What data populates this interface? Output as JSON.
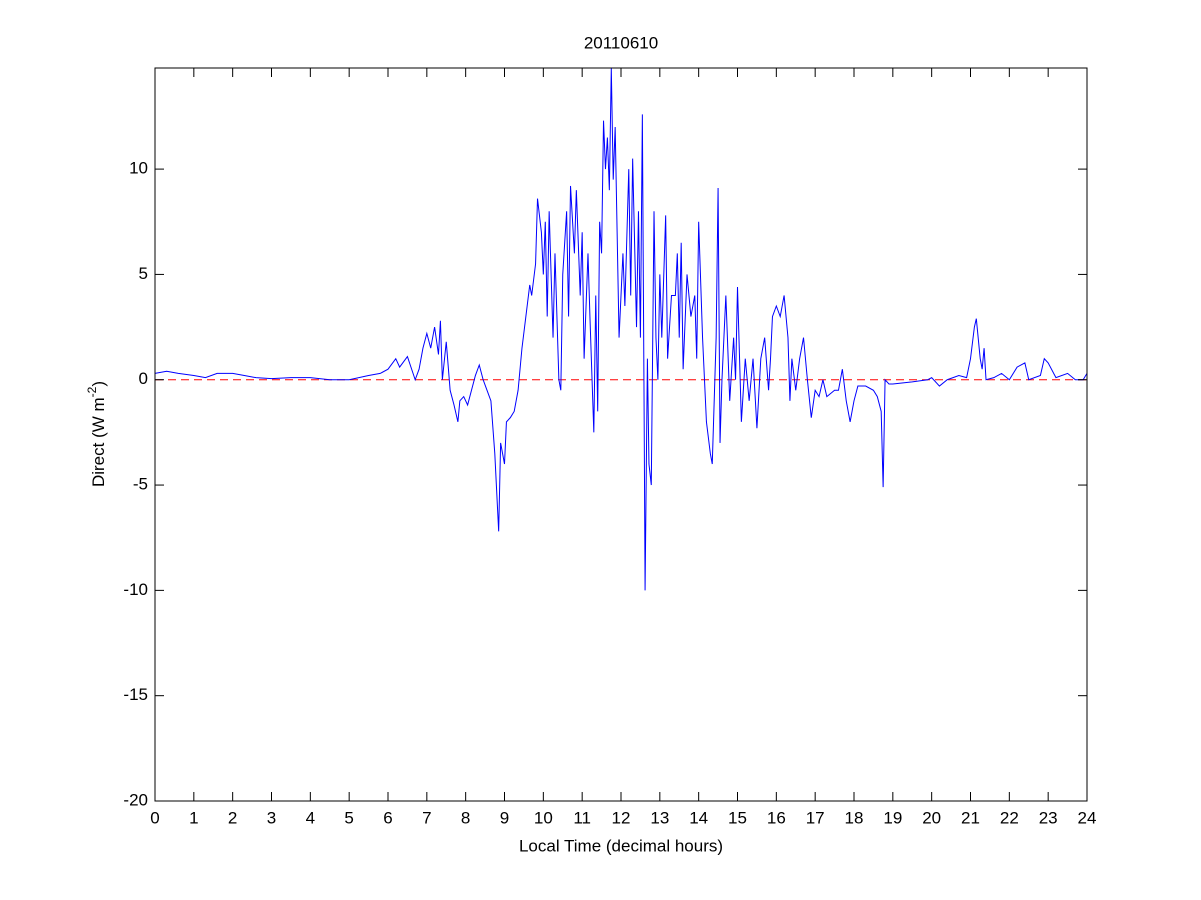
{
  "chart_data": {
    "type": "line",
    "title": "20110610",
    "x_label": "Local Time (decimal hours)",
    "y_label": {
      "text": "Direct (W m",
      "superscript": "-2",
      "suffix": ")"
    },
    "x": [
      0,
      0.3,
      0.6,
      1,
      1.3,
      1.6,
      2,
      2.3,
      2.6,
      3,
      3.5,
      4,
      4.5,
      5,
      5.5,
      5.8,
      6,
      6.2,
      6.3,
      6.5,
      6.7,
      6.8,
      6.9,
      7.0,
      7.1,
      7.2,
      7.3,
      7.35,
      7.4,
      7.5,
      7.6,
      7.7,
      7.8,
      7.85,
      7.95,
      8.05,
      8.15,
      8.25,
      8.35,
      8.45,
      8.55,
      8.65,
      8.75,
      8.85,
      8.9,
      9.0,
      9.05,
      9.15,
      9.25,
      9.35,
      9.45,
      9.55,
      9.65,
      9.7,
      9.8,
      9.85,
      9.95,
      10.0,
      10.05,
      10.1,
      10.15,
      10.25,
      10.3,
      10.4,
      10.45,
      10.5,
      10.6,
      10.65,
      10.7,
      10.8,
      10.85,
      10.95,
      11.0,
      11.05,
      11.15,
      11.2,
      11.3,
      11.35,
      11.4,
      11.45,
      11.5,
      11.55,
      11.6,
      11.65,
      11.7,
      11.75,
      11.8,
      11.85,
      11.9,
      11.95,
      12.05,
      12.1,
      12.2,
      12.25,
      12.3,
      12.4,
      12.45,
      12.5,
      12.55,
      12.6,
      12.62,
      12.68,
      12.72,
      12.78,
      12.85,
      12.9,
      12.95,
      13.0,
      13.05,
      13.15,
      13.2,
      13.3,
      13.4,
      13.45,
      13.5,
      13.55,
      13.6,
      13.7,
      13.8,
      13.9,
      13.95,
      14.0,
      14.1,
      14.15,
      14.2,
      14.3,
      14.35,
      14.4,
      14.45,
      14.5,
      14.55,
      14.6,
      14.7,
      14.8,
      14.9,
      14.95,
      15.0,
      15.1,
      15.2,
      15.3,
      15.4,
      15.5,
      15.6,
      15.7,
      15.8,
      15.85,
      15.9,
      16.0,
      16.1,
      16.2,
      16.3,
      16.35,
      16.4,
      16.5,
      16.6,
      16.7,
      16.8,
      16.9,
      17.0,
      17.1,
      17.2,
      17.3,
      17.5,
      17.6,
      17.7,
      17.8,
      17.9,
      18.0,
      18.1,
      18.3,
      18.5,
      18.6,
      18.7,
      18.75,
      18.8,
      18.9,
      19.0,
      19.5,
      19.9,
      20.0,
      20.2,
      20.4,
      20.7,
      20.9,
      21.0,
      21.1,
      21.15,
      21.25,
      21.3,
      21.35,
      21.4,
      21.6,
      21.8,
      22.0,
      22.2,
      22.4,
      22.5,
      22.8,
      22.9,
      23.0,
      23.2,
      23.5,
      23.7,
      23.9,
      24
    ],
    "series": [
      {
        "color": "#0000ff",
        "values": [
          0.3,
          0.4,
          0.3,
          0.2,
          0.1,
          0.3,
          0.3,
          0.2,
          0.1,
          0.05,
          0.1,
          0.1,
          0,
          0,
          0.2,
          0.3,
          0.5,
          1.0,
          0.6,
          1.1,
          0,
          0.5,
          1.5,
          2.2,
          1.5,
          2.5,
          1.2,
          2.8,
          0,
          1.8,
          -0.5,
          -1.2,
          -2,
          -1,
          -0.8,
          -1.2,
          -0.5,
          0.2,
          0.7,
          0,
          -0.5,
          -1,
          -3.5,
          -7.2,
          -3,
          -4,
          -2,
          -1.8,
          -1.5,
          -0.5,
          1.5,
          3,
          4.5,
          4,
          5.5,
          8.6,
          7,
          5,
          7.5,
          3,
          8,
          2,
          6,
          0,
          -0.5,
          5,
          8,
          3,
          9.2,
          6,
          9,
          4,
          7,
          1,
          6,
          3,
          -2.5,
          4,
          -1.5,
          7.5,
          6,
          12.3,
          10,
          11.5,
          9,
          14.8,
          9.5,
          12,
          7,
          2,
          6,
          3.5,
          10,
          4,
          10.5,
          2.5,
          8,
          2,
          12.6,
          -3,
          -10,
          1,
          -4,
          -5,
          8,
          2,
          0,
          5,
          2,
          7.8,
          1,
          4,
          4,
          6,
          2,
          6.5,
          0.5,
          5,
          3,
          4,
          1,
          7.5,
          2,
          0,
          -2,
          -3.5,
          -4,
          -1,
          2,
          9.1,
          -3,
          0,
          4,
          -1,
          2,
          0,
          4.4,
          -2,
          1,
          -1,
          1,
          -2.3,
          1,
          2,
          -0.5,
          1,
          3,
          3.5,
          3,
          4,
          2,
          -1,
          1,
          -0.5,
          1,
          2,
          0,
          -1.8,
          -0.5,
          -0.8,
          0,
          -0.8,
          -0.5,
          -0.5,
          0.5,
          -1,
          -2,
          -1,
          -0.3,
          -0.3,
          -0.5,
          -0.8,
          -1.5,
          -5.1,
          0,
          -0.2,
          -0.2,
          -0.1,
          0,
          0.1,
          -0.3,
          0,
          0.2,
          0.1,
          1,
          2.5,
          2.9,
          1,
          0.5,
          1.5,
          0,
          0.1,
          0.3,
          0,
          0.6,
          0.8,
          0,
          0.2,
          1,
          0.8,
          0.1,
          0.3,
          0,
          0,
          0.3
        ]
      }
    ],
    "reference_line": {
      "value": 0,
      "color": "#ff0000",
      "style": "dashed"
    },
    "xlim": [
      0,
      24
    ],
    "xticks": [
      0,
      1,
      2,
      3,
      4,
      5,
      6,
      7,
      8,
      9,
      10,
      11,
      12,
      13,
      14,
      15,
      16,
      17,
      18,
      19,
      20,
      21,
      22,
      23,
      24
    ],
    "ylim": [
      -20,
      14.8
    ],
    "yticks": [
      -20,
      -15,
      -10,
      -5,
      0,
      5,
      10
    ],
    "grid": false
  }
}
